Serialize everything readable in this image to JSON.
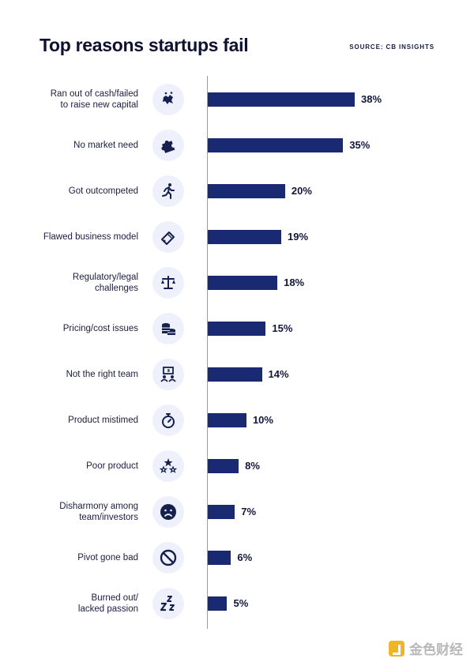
{
  "header": {
    "title": "Top reasons startups fail",
    "source": "SOURCE: CB INSIGHTS"
  },
  "colors": {
    "bar": "#1a2a72",
    "icon_bg": "#eef1fb",
    "icon": "#16204f"
  },
  "chart_data": {
    "type": "bar",
    "orientation": "horizontal",
    "title": "Top reasons startups fail",
    "xlim": [
      0,
      40
    ],
    "grid": false,
    "categories": [
      "Ran out of cash/failed\nto raise new capital",
      "No market need",
      "Got outcompeted",
      "Flawed business model",
      "Regulatory/legal\nchallenges",
      "Pricing/cost issues",
      "Not the right team",
      "Product mistimed",
      "Poor product",
      "Disharmony among\nteam/investors",
      "Pivot gone bad",
      "Burned out/\nlacked passion"
    ],
    "values": [
      38,
      35,
      20,
      19,
      18,
      15,
      14,
      10,
      8,
      7,
      6,
      5
    ],
    "value_labels": [
      "38%",
      "35%",
      "20%",
      "19%",
      "18%",
      "15%",
      "14%",
      "10%",
      "8%",
      "7%",
      "6%",
      "5%"
    ],
    "icons": [
      "broken-piggy-bank-icon",
      "puzzle-piece-icon",
      "running-person-icon",
      "broken-card-icon",
      "scales-icon",
      "coin-stack-icon",
      "team-icon",
      "stopwatch-icon",
      "stars-icon",
      "sad-face-icon",
      "no-entry-icon",
      "sleep-zzz-icon"
    ]
  },
  "watermark": {
    "text": "金色财经"
  }
}
